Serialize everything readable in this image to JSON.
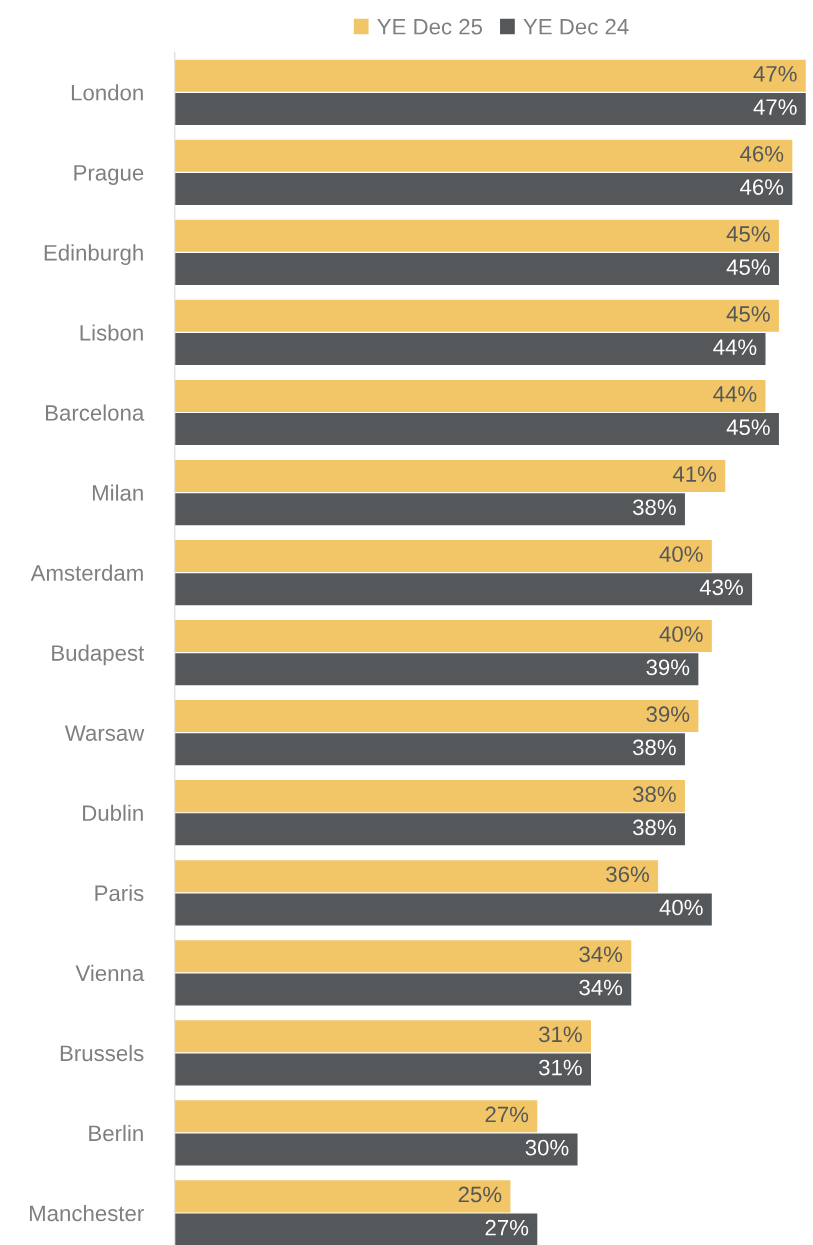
{
  "chart_data": {
    "type": "bar",
    "orientation": "horizontal",
    "categories": [
      "London",
      "Prague",
      "Edinburgh",
      "Lisbon",
      "Barcelona",
      "Milan",
      "Amsterdam",
      "Budapest",
      "Warsaw",
      "Dublin",
      "Paris",
      "Vienna",
      "Brussels",
      "Berlin",
      "Manchester"
    ],
    "series": [
      {
        "name": "YE Dec 25",
        "color": "#f2c566",
        "values": [
          47,
          46,
          45,
          45,
          44,
          41,
          40,
          40,
          39,
          38,
          36,
          34,
          31,
          27,
          25
        ],
        "value_labels": [
          "47%",
          "46%",
          "45%",
          "45%",
          "44%",
          "41%",
          "40%",
          "40%",
          "39%",
          "38%",
          "36%",
          "34%",
          "31%",
          "27%",
          "25%"
        ]
      },
      {
        "name": "YE Dec 24",
        "color": "#54585a",
        "values": [
          47,
          46,
          45,
          44,
          45,
          38,
          43,
          39,
          38,
          38,
          40,
          34,
          31,
          30,
          27
        ],
        "value_labels": [
          "47%",
          "46%",
          "45%",
          "44%",
          "45%",
          "38%",
          "43%",
          "39%",
          "38%",
          "38%",
          "40%",
          "34%",
          "31%",
          "30%",
          "27%"
        ]
      }
    ],
    "legend": "top",
    "grid": false,
    "tick_labels": "y"
  }
}
